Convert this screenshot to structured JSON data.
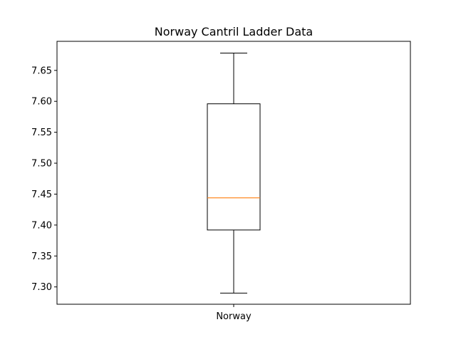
{
  "chart_data": {
    "type": "box",
    "title": "Norway Cantril Ladder Data",
    "xlabel": "",
    "ylabel": "",
    "categories": [
      "Norway"
    ],
    "series": [
      {
        "name": "Norway",
        "whisker_low": 7.29,
        "q1": 7.392,
        "median": 7.444,
        "q3": 7.596,
        "whisker_high": 7.678
      }
    ],
    "ylim": [
      7.272,
      7.697
    ],
    "yticks": [
      "7.30",
      "7.35",
      "7.40",
      "7.45",
      "7.50",
      "7.55",
      "7.60",
      "7.65"
    ],
    "grid": false,
    "colors": {
      "box": "#000000",
      "median": "#ff7f0e",
      "whisker": "#000000"
    }
  }
}
